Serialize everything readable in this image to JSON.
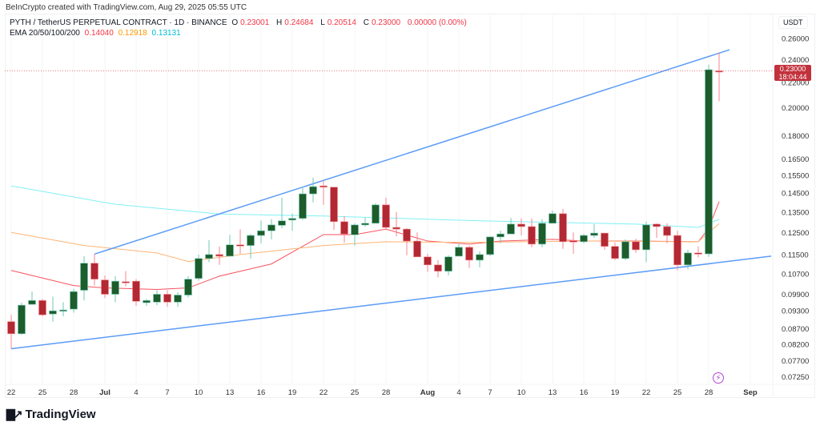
{
  "credit": "BeInCrypto created with TradingView.com, Aug 29, 2025 05:55 UTC",
  "legend": {
    "symbol": "PYTH / TetherUS PERPETUAL CONTRACT · 1D · BINANCE",
    "o_label": "O",
    "o": "0.23001",
    "h_label": "H",
    "h": "0.24684",
    "l_label": "L",
    "l": "0.20514",
    "c_label": "C",
    "c": "0.23000",
    "change": "0.00000 (0.00%)",
    "ema_label": "EMA 20/50/100/200",
    "ema_values": [
      "0.14040",
      "0.12918",
      "0.13131"
    ]
  },
  "price_axis": {
    "unit": "USDT",
    "scale": "log",
    "ticks": [
      "0.26000",
      "0.24000",
      "0.22000",
      "0.20000",
      "0.18000",
      "0.16500",
      "0.15500",
      "0.14500",
      "0.13500",
      "0.12500",
      "0.11500",
      "0.10700",
      "0.09900",
      "0.09300",
      "0.08700",
      "0.08200",
      "0.07700",
      "0.07250"
    ]
  },
  "current_price": {
    "value": "0.23000",
    "countdown": "18:04:44",
    "color": "#c2323c"
  },
  "date_axis": {
    "ticks": [
      {
        "label": "22",
        "date": "2025-06-22"
      },
      {
        "label": "25",
        "date": "2025-06-25"
      },
      {
        "label": "28",
        "date": "2025-06-28"
      },
      {
        "label": "Jul",
        "date": "2025-07-01",
        "bold": true
      },
      {
        "label": "4",
        "date": "2025-07-04"
      },
      {
        "label": "7",
        "date": "2025-07-07"
      },
      {
        "label": "10",
        "date": "2025-07-10"
      },
      {
        "label": "13",
        "date": "2025-07-13"
      },
      {
        "label": "16",
        "date": "2025-07-16"
      },
      {
        "label": "19",
        "date": "2025-07-19"
      },
      {
        "label": "22",
        "date": "2025-07-22"
      },
      {
        "label": "25",
        "date": "2025-07-25"
      },
      {
        "label": "28",
        "date": "2025-07-28"
      },
      {
        "label": "Aug",
        "date": "2025-08-01",
        "bold": true
      },
      {
        "label": "4",
        "date": "2025-08-04"
      },
      {
        "label": "7",
        "date": "2025-08-07"
      },
      {
        "label": "10",
        "date": "2025-08-10"
      },
      {
        "label": "13",
        "date": "2025-08-13"
      },
      {
        "label": "16",
        "date": "2025-08-16"
      },
      {
        "label": "19",
        "date": "2025-08-19"
      },
      {
        "label": "22",
        "date": "2025-08-22"
      },
      {
        "label": "25",
        "date": "2025-08-25"
      },
      {
        "label": "28",
        "date": "2025-08-28"
      },
      {
        "label": "Sep",
        "date": "2025-09-01",
        "bold": true
      }
    ]
  },
  "colors": {
    "up_body": "#1d5c2b",
    "up_wick": "#6fcab4",
    "down_body": "#b22833",
    "down_wick": "#f7868c",
    "ema20": "#f7525f",
    "ema50": "#ffb574",
    "ema100": "#80f0f5",
    "trendline": "#5b9cf6"
  },
  "chart_data": {
    "type": "candlestick",
    "candles": [
      [
        "2025-06-22",
        0.0893,
        0.0916,
        0.0806,
        0.0853
      ],
      [
        "2025-06-23",
        0.0853,
        0.0959,
        0.085,
        0.095
      ],
      [
        "2025-06-24",
        0.0953,
        0.1,
        0.0953,
        0.0967
      ],
      [
        "2025-06-25",
        0.0967,
        0.0973,
        0.0911,
        0.0916
      ],
      [
        "2025-06-26",
        0.0919,
        0.0981,
        0.0893,
        0.093
      ],
      [
        "2025-06-27",
        0.093,
        0.0961,
        0.0911,
        0.0933
      ],
      [
        "2025-06-28",
        0.0936,
        0.1011,
        0.0924,
        0.1
      ],
      [
        "2025-06-29",
        0.1005,
        0.1143,
        0.0967,
        0.1113
      ],
      [
        "2025-06-30",
        0.1113,
        0.1152,
        0.1023,
        0.1048
      ],
      [
        "2025-07-01",
        0.1045,
        0.1063,
        0.0976,
        0.099
      ],
      [
        "2025-07-02",
        0.099,
        0.106,
        0.0961,
        0.104
      ],
      [
        "2025-07-03",
        0.1038,
        0.108,
        0.102,
        0.1035
      ],
      [
        "2025-07-04",
        0.104,
        0.1048,
        0.0947,
        0.0964
      ],
      [
        "2025-07-05",
        0.0959,
        0.0973,
        0.0947,
        0.0967
      ],
      [
        "2025-07-06",
        0.0961,
        0.1005,
        0.095,
        0.099
      ],
      [
        "2025-07-07",
        0.099,
        0.1005,
        0.0944,
        0.0961
      ],
      [
        "2025-07-08",
        0.0961,
        0.0998,
        0.0944,
        0.0987
      ],
      [
        "2025-07-09",
        0.0987,
        0.106,
        0.0978,
        0.1048
      ],
      [
        "2025-07-10",
        0.1051,
        0.115,
        0.1042,
        0.1133
      ],
      [
        "2025-07-11",
        0.1133,
        0.1214,
        0.1117,
        0.115
      ],
      [
        "2025-07-12",
        0.115,
        0.1186,
        0.1106,
        0.1143
      ],
      [
        "2025-07-13",
        0.1143,
        0.1239,
        0.1143,
        0.1193
      ],
      [
        "2025-07-14",
        0.1193,
        0.1265,
        0.1153,
        0.119
      ],
      [
        "2025-07-15",
        0.119,
        0.1243,
        0.1133,
        0.1236
      ],
      [
        "2025-07-16",
        0.1236,
        0.1306,
        0.12,
        0.1258
      ],
      [
        "2025-07-17",
        0.1258,
        0.1314,
        0.1218,
        0.1286
      ],
      [
        "2025-07-18",
        0.1284,
        0.1425,
        0.127,
        0.1306
      ],
      [
        "2025-07-19",
        0.131,
        0.1342,
        0.1258,
        0.1318
      ],
      [
        "2025-07-20",
        0.1318,
        0.1486,
        0.131,
        0.1446
      ],
      [
        "2025-07-21",
        0.1446,
        0.1537,
        0.14,
        0.1486
      ],
      [
        "2025-07-22",
        0.149,
        0.1522,
        0.1387,
        0.1483
      ],
      [
        "2025-07-23",
        0.1483,
        0.1483,
        0.1262,
        0.1302
      ],
      [
        "2025-07-24",
        0.1302,
        0.133,
        0.1203,
        0.1243
      ],
      [
        "2025-07-25",
        0.1239,
        0.1294,
        0.119,
        0.1286
      ],
      [
        "2025-07-26",
        0.1286,
        0.1322,
        0.1278,
        0.1294
      ],
      [
        "2025-07-27",
        0.1294,
        0.1396,
        0.1294,
        0.1387
      ],
      [
        "2025-07-28",
        0.1387,
        0.1425,
        0.1262,
        0.1274
      ],
      [
        "2025-07-29",
        0.1274,
        0.135,
        0.1232,
        0.1266
      ],
      [
        "2025-07-30",
        0.1266,
        0.127,
        0.1147,
        0.121
      ],
      [
        "2025-07-31",
        0.121,
        0.125,
        0.114,
        0.114
      ],
      [
        "2025-08-01",
        0.114,
        0.1153,
        0.1077,
        0.1106
      ],
      [
        "2025-08-02",
        0.1106,
        0.1126,
        0.1055,
        0.108
      ],
      [
        "2025-08-03",
        0.108,
        0.1147,
        0.1063,
        0.114
      ],
      [
        "2025-08-04",
        0.1143,
        0.12,
        0.1143,
        0.1182
      ],
      [
        "2025-08-05",
        0.1182,
        0.1189,
        0.1093,
        0.1126
      ],
      [
        "2025-08-06",
        0.1126,
        0.1164,
        0.1096,
        0.115
      ],
      [
        "2025-08-07",
        0.115,
        0.1232,
        0.1143,
        0.1229
      ],
      [
        "2025-08-08",
        0.1229,
        0.1258,
        0.12,
        0.1243
      ],
      [
        "2025-08-09",
        0.1243,
        0.132,
        0.1243,
        0.129
      ],
      [
        "2025-08-10",
        0.129,
        0.1318,
        0.1236,
        0.1278
      ],
      [
        "2025-08-11",
        0.1278,
        0.1318,
        0.1182,
        0.1196
      ],
      [
        "2025-08-12",
        0.1196,
        0.1314,
        0.1182,
        0.1294
      ],
      [
        "2025-08-13",
        0.1294,
        0.1358,
        0.1294,
        0.1342
      ],
      [
        "2025-08-14",
        0.1342,
        0.1366,
        0.1175,
        0.1207
      ],
      [
        "2025-08-15",
        0.1211,
        0.125,
        0.1153,
        0.1207
      ],
      [
        "2025-08-16",
        0.1207,
        0.1243,
        0.12,
        0.1236
      ],
      [
        "2025-08-17",
        0.1236,
        0.129,
        0.1225,
        0.1247
      ],
      [
        "2025-08-18",
        0.1247,
        0.1247,
        0.1171,
        0.1186
      ],
      [
        "2025-08-19",
        0.1186,
        0.1204,
        0.1126,
        0.1133
      ],
      [
        "2025-08-20",
        0.1133,
        0.1218,
        0.1126,
        0.1207
      ],
      [
        "2025-08-21",
        0.1207,
        0.1221,
        0.1157,
        0.1171
      ],
      [
        "2025-08-22",
        0.1171,
        0.1302,
        0.1117,
        0.1286
      ],
      [
        "2025-08-23",
        0.129,
        0.1294,
        0.1225,
        0.1278
      ],
      [
        "2025-08-24",
        0.1278,
        0.1294,
        0.12,
        0.1236
      ],
      [
        "2025-08-25",
        0.1236,
        0.1258,
        0.1083,
        0.1106
      ],
      [
        "2025-08-26",
        0.1106,
        0.1171,
        0.1088,
        0.1157
      ],
      [
        "2025-08-27",
        0.1157,
        0.1186,
        0.1138,
        0.1153
      ],
      [
        "2025-08-28",
        0.1153,
        0.2355,
        0.114,
        0.231
      ],
      [
        "2025-08-29",
        0.23001,
        0.24684,
        0.20514,
        0.23
      ]
    ],
    "ema": [
      {
        "name": "EMA 20",
        "points": [
          [
            "2025-06-22",
            0.1083
          ],
          [
            "2025-06-28",
            0.1023
          ],
          [
            "2025-07-01",
            0.1014
          ],
          [
            "2025-07-06",
            0.1008
          ],
          [
            "2025-07-09",
            0.1014
          ],
          [
            "2025-07-12",
            0.106
          ],
          [
            "2025-07-17",
            0.111
          ],
          [
            "2025-07-22",
            0.124
          ],
          [
            "2025-07-25",
            0.124
          ],
          [
            "2025-07-28",
            0.1266
          ],
          [
            "2025-08-01",
            0.121
          ],
          [
            "2025-08-05",
            0.1196
          ],
          [
            "2025-08-08",
            0.121
          ],
          [
            "2025-08-13",
            0.1218
          ],
          [
            "2025-08-16",
            0.121
          ],
          [
            "2025-08-21",
            0.121
          ],
          [
            "2025-08-27",
            0.1207
          ],
          [
            "2025-08-28",
            0.127
          ],
          [
            "2025-08-29",
            0.1404
          ]
        ]
      },
      {
        "name": "EMA 50",
        "points": [
          [
            "2025-06-22",
            0.125
          ],
          [
            "2025-06-29",
            0.119
          ],
          [
            "2025-07-06",
            0.1157
          ],
          [
            "2025-07-09",
            0.112
          ],
          [
            "2025-07-14",
            0.115
          ],
          [
            "2025-07-22",
            0.119
          ],
          [
            "2025-07-28",
            0.1207
          ],
          [
            "2025-08-05",
            0.1204
          ],
          [
            "2025-08-16",
            0.121
          ],
          [
            "2025-08-27",
            0.1207
          ],
          [
            "2025-08-28",
            0.125
          ],
          [
            "2025-08-29",
            0.12918
          ]
        ]
      },
      {
        "name": "EMA 100",
        "points": [
          [
            "2025-06-22",
            0.149
          ],
          [
            "2025-07-02",
            0.139
          ],
          [
            "2025-07-12",
            0.134
          ],
          [
            "2025-07-22",
            0.133
          ],
          [
            "2025-08-06",
            0.1306
          ],
          [
            "2025-08-21",
            0.129
          ],
          [
            "2025-08-27",
            0.1274
          ],
          [
            "2025-08-29",
            0.13131
          ]
        ]
      }
    ],
    "trendlines": [
      {
        "from": [
          "2025-06-30",
          0.1152
        ],
        "to": [
          "2025-08-30",
          0.249
        ]
      },
      {
        "from": [
          "2025-06-22",
          0.0806
        ],
        "to": [
          "2025-09-03",
          0.1143
        ]
      }
    ]
  },
  "logo": {
    "text": "TradingView"
  }
}
